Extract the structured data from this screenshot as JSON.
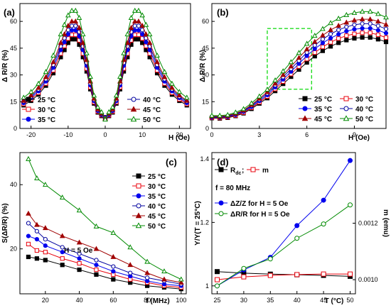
{
  "chart_data": [
    {
      "panel": "(a)",
      "type": "line",
      "xlabel": "H (Oe)",
      "ylabel": "Δ R/R (%)",
      "xlim": [
        -23,
        23
      ],
      "ylim": [
        0,
        70
      ],
      "xticks": [
        -20,
        -10,
        0,
        10,
        20
      ],
      "yticks": [
        0,
        15,
        30,
        45,
        60
      ],
      "legend_position": "bottom",
      "x": [
        -22,
        -20,
        -18,
        -16,
        -14,
        -12,
        -11,
        -10,
        -9,
        -8,
        -7,
        -6,
        -5,
        -4,
        -3,
        -2,
        -1,
        0,
        1,
        2,
        3,
        4,
        5,
        6,
        7,
        8,
        9,
        10,
        11,
        12,
        14,
        16,
        18,
        20,
        22
      ],
      "series": [
        {
          "name": "25 °C",
          "marker": "filled-square",
          "color": "#000000",
          "values": [
            13,
            15.5,
            19,
            24,
            31,
            40,
            44,
            48,
            50,
            50,
            47,
            40,
            32,
            22,
            14,
            9,
            7,
            6,
            7,
            9,
            14,
            22,
            32,
            40,
            47,
            50,
            50,
            48,
            44,
            40,
            31,
            24,
            19,
            15.5,
            13
          ]
        },
        {
          "name": "30 °C",
          "marker": "open-square",
          "color": "#e8000b",
          "values": [
            13.7,
            16.3,
            20,
            25.2,
            32.6,
            42,
            46.2,
            50.4,
            52.5,
            52.5,
            49.4,
            42,
            33.6,
            23.1,
            14.7,
            9.5,
            7.4,
            6.3,
            7.4,
            9.5,
            14.7,
            23.1,
            33.6,
            42,
            49.4,
            52.5,
            52.5,
            50.4,
            46.2,
            42,
            32.6,
            25.2,
            20,
            16.3,
            13.7
          ]
        },
        {
          "name": "35 °C",
          "marker": "filled-circle",
          "color": "#0000ee",
          "values": [
            14.3,
            17.1,
            20.9,
            26.4,
            34.1,
            44,
            48.4,
            52.8,
            55,
            55,
            51.7,
            44,
            35.2,
            24.2,
            15.4,
            9.9,
            7.7,
            6.3,
            7.7,
            9.9,
            15.4,
            24.2,
            35.2,
            44,
            51.7,
            55,
            55,
            52.8,
            48.4,
            44,
            34.1,
            26.4,
            20.9,
            17.1,
            14.3
          ]
        },
        {
          "name": "40 °C",
          "marker": "open-circle",
          "color": "#00009e",
          "values": [
            15.1,
            17.8,
            21.9,
            27.6,
            35.7,
            46,
            50.6,
            55.2,
            57.5,
            57.5,
            54.1,
            46,
            36.8,
            25.3,
            16.1,
            10.4,
            8.1,
            6,
            8.1,
            10.4,
            16.1,
            25.3,
            36.8,
            46,
            54.1,
            57.5,
            57.5,
            55.2,
            50.6,
            46,
            35.7,
            27.6,
            21.9,
            17.8,
            15.1
          ]
        },
        {
          "name": "45 °C",
          "marker": "filled-triangle",
          "color": "#a00000",
          "values": [
            15.6,
            18.6,
            22.8,
            28.8,
            37.2,
            48,
            52.8,
            57.6,
            60,
            60,
            56.4,
            48,
            38.4,
            26.4,
            16.8,
            10.8,
            8.4,
            5.5,
            8.4,
            10.8,
            16.8,
            26.4,
            38.4,
            48,
            56.4,
            60,
            60,
            57.6,
            52.8,
            48,
            37.2,
            28.8,
            22.8,
            18.6,
            15.6
          ]
        },
        {
          "name": "50 °C",
          "marker": "open-triangle",
          "color": "#008a00",
          "values": [
            17.3,
            20.5,
            25.1,
            31.7,
            40.9,
            52.8,
            58.1,
            63.4,
            66,
            66,
            62,
            52.8,
            42.2,
            29,
            18.5,
            11.9,
            9.2,
            5,
            9.2,
            11.9,
            18.5,
            29,
            42.2,
            52.8,
            62,
            66,
            66,
            63.4,
            58.1,
            52.8,
            40.9,
            31.7,
            25.1,
            20.5,
            17.3
          ]
        }
      ]
    },
    {
      "panel": "(b)",
      "type": "line",
      "xlabel": "H (Oe)",
      "ylabel": "Δ R/R (%)",
      "xlim": [
        0,
        11
      ],
      "ylim": [
        0,
        70
      ],
      "xticks": [
        0,
        3,
        6,
        9
      ],
      "yticks": [
        0,
        15,
        30,
        45,
        60
      ],
      "legend_position": "bottom-right",
      "zoom_box": {
        "x": [
          3.5,
          6.3
        ],
        "y": [
          22,
          56
        ]
      },
      "x": [
        0,
        0.5,
        1,
        1.5,
        2,
        2.5,
        3,
        3.5,
        4,
        4.5,
        5,
        5.5,
        6,
        6.5,
        7,
        7.5,
        8,
        8.5,
        9,
        9.5,
        10,
        10.5,
        11
      ],
      "series": [
        {
          "name": "25 °C",
          "marker": "filled-square",
          "color": "#000000",
          "values": [
            5.8,
            5.6,
            6,
            7,
            8.5,
            11,
            14,
            17,
            21,
            25,
            29,
            33,
            37,
            40.5,
            43.5,
            46,
            48,
            49.5,
            50.5,
            51,
            51,
            50,
            48.5
          ]
        },
        {
          "name": "30 °C",
          "marker": "open-square",
          "color": "#e8000b",
          "values": [
            6,
            5.9,
            6.3,
            7.3,
            8.9,
            11.6,
            14.7,
            17.9,
            22.1,
            26.3,
            30.5,
            34.7,
            38.9,
            42.5,
            45.7,
            48.3,
            50.4,
            52,
            53,
            53.6,
            53.6,
            52.5,
            50.9
          ]
        },
        {
          "name": "35 °C",
          "marker": "filled-circle",
          "color": "#0000ee",
          "values": [
            6.2,
            6.2,
            6.6,
            7.7,
            9.4,
            12.1,
            15.4,
            18.7,
            23.1,
            27.5,
            31.9,
            36.3,
            40.7,
            44.6,
            47.9,
            50.6,
            52.8,
            54.5,
            55.6,
            56.1,
            56.1,
            55,
            53.4
          ]
        },
        {
          "name": "40 °C",
          "marker": "open-circle",
          "color": "#00009e",
          "values": [
            6.5,
            6.4,
            6.9,
            8.1,
            9.8,
            12.7,
            16.1,
            19.6,
            24.2,
            28.8,
            33.4,
            38,
            42.6,
            46.6,
            50,
            52.9,
            55.2,
            56.9,
            58.1,
            58.7,
            58.7,
            57.5,
            55.8
          ]
        },
        {
          "name": "45 °C",
          "marker": "filled-triangle",
          "color": "#a00000",
          "values": [
            6.8,
            6.7,
            7.2,
            8.4,
            10.2,
            13.2,
            16.8,
            20.4,
            25.2,
            30,
            34.8,
            39.6,
            44.4,
            48.6,
            52.2,
            55.2,
            57.6,
            59.4,
            60.6,
            61.2,
            61.2,
            60,
            58.2
          ]
        },
        {
          "name": "50 °C",
          "marker": "open-triangle",
          "color": "#008a00",
          "values": [
            7.2,
            7.2,
            7.6,
            9,
            10.9,
            14.1,
            18,
            21.8,
            27,
            32.1,
            37.2,
            42.4,
            47.5,
            52,
            55.8,
            59.1,
            61.6,
            63.6,
            64.8,
            65.5,
            65.5,
            64.2,
            62.3
          ]
        }
      ]
    },
    {
      "panel": "(c)",
      "type": "line",
      "xlabel": "f (MHz)",
      "ylabel": "S(ΔR/R) (%)",
      "xlim": [
        5,
        103
      ],
      "ylim": [
        6,
        50
      ],
      "xticks": [
        20,
        40,
        60,
        80,
        100
      ],
      "yticks": [
        20,
        40
      ],
      "annotation": "H = 5 Oe",
      "legend_position": "top-right",
      "x": [
        10,
        15,
        20,
        30,
        40,
        50,
        60,
        70,
        80,
        90,
        100
      ],
      "series": [
        {
          "name": "25 °C",
          "marker": "filled-square",
          "color": "#000000",
          "values": [
            17.5,
            17,
            16.5,
            15,
            13.5,
            12,
            10.5,
            9.5,
            8.5,
            8,
            7.5
          ]
        },
        {
          "name": "30 °C",
          "marker": "open-square",
          "color": "#e8000b",
          "values": [
            21.5,
            19.5,
            19,
            17,
            15.5,
            13.5,
            12,
            10.5,
            9.5,
            8.5,
            8
          ]
        },
        {
          "name": "35 °C",
          "marker": "filled-circle",
          "color": "#0000ee",
          "values": [
            24,
            23,
            21,
            19,
            17,
            15,
            13,
            11.5,
            10,
            9,
            8.5
          ]
        },
        {
          "name": "40 °C",
          "marker": "open-circle",
          "color": "#00009e",
          "values": [
            28,
            25.5,
            23,
            20.5,
            18.5,
            16.5,
            14.5,
            12.5,
            11,
            10,
            9
          ]
        },
        {
          "name": "45 °C",
          "marker": "filled-triangle",
          "color": "#a00000",
          "values": [
            31,
            27.5,
            26.5,
            24,
            22,
            20,
            17.5,
            15,
            12.5,
            10.5,
            9.5
          ]
        },
        {
          "name": "50 °C",
          "marker": "open-triangle",
          "color": "#008a00",
          "values": [
            48,
            42,
            40,
            36,
            32,
            27,
            25,
            20.5,
            16,
            13,
            10.5
          ]
        }
      ]
    },
    {
      "panel": "(d)",
      "type": "line",
      "xlabel": "T (°C)",
      "ylabel": "Y/Y(T = 25°C)",
      "y2label": "m (emu)",
      "xlim": [
        24,
        51
      ],
      "ylim": [
        0.975,
        1.42
      ],
      "y2lim": [
        0.00095,
        0.00145
      ],
      "xticks": [
        25,
        30,
        35,
        40,
        45,
        50
      ],
      "yticks": [
        1.0,
        1.2,
        1.4
      ],
      "y2ticks": [
        0.001,
        0.0012
      ],
      "y2ticklabels": [
        "0.0010",
        "0.0012"
      ],
      "annotation": "f = 80 MHz",
      "legend_position": "top-left",
      "x": [
        25,
        30,
        35,
        40,
        45,
        50
      ],
      "series": [
        {
          "name": "R",
          "name_sub": "dc",
          "marker": "filled-square",
          "color": "#000000",
          "axis": "left",
          "values": [
            1.045,
            1.04,
            1.037,
            1.035,
            1.033,
            1.03
          ]
        },
        {
          "name": "m",
          "marker": "open-square",
          "color": "#e8000b",
          "axis": "right",
          "values": [
            0.001,
            0.00101,
            0.001015,
            0.001018,
            0.00102,
            0.00102
          ]
        },
        {
          "name": "ΔZ/Z for H = 5 Oe",
          "marker": "filled-circle",
          "color": "#0000ee",
          "axis": "left",
          "values": [
            1.0,
            1.05,
            1.09,
            1.19,
            1.27,
            1.395
          ]
        },
        {
          "name": "ΔR/R for H = 5 Oe",
          "marker": "open-circle",
          "color": "#008a00",
          "axis": "left",
          "values": [
            1.0,
            1.055,
            1.085,
            1.15,
            1.195,
            1.255
          ]
        }
      ]
    }
  ]
}
